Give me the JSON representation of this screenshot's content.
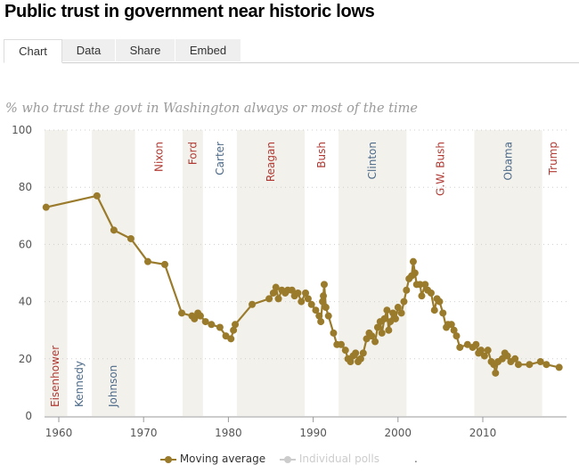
{
  "title": "Public trust in government near historic lows",
  "tabs": [
    {
      "label": "Chart",
      "active": true
    },
    {
      "label": "Data",
      "active": false
    },
    {
      "label": "Share",
      "active": false
    },
    {
      "label": "Embed",
      "active": false
    }
  ],
  "colors": {
    "line": "#9a7b2c",
    "band": "#f3f1ec",
    "republican": "#b03a33",
    "democrat": "#4d6a89",
    "inactive_legend": "#cccccc",
    "grid": "#cfcfcf",
    "axis": "#999999"
  },
  "chart_data": {
    "type": "line",
    "title": "Public trust in government near historic lows",
    "subtitle": "% who trust the govt in Washington always or most of the time",
    "xlabel": "",
    "ylabel": "",
    "xlim": [
      1958.3,
      2020
    ],
    "ylim": [
      0,
      100
    ],
    "x_ticks": [
      1960,
      1970,
      1980,
      1990,
      2000,
      2010
    ],
    "y_ticks": [
      0,
      20,
      40,
      60,
      80,
      100
    ],
    "grid": true,
    "legend_position": "bottom",
    "legend": [
      {
        "label": "Moving average",
        "active": true
      },
      {
        "label": "Individual polls",
        "active": false
      },
      {
        "label": ".",
        "active": false
      }
    ],
    "presidents": [
      {
        "name": "Eisenhower",
        "start": 1953,
        "end": 1961,
        "party": "R",
        "shaded": true
      },
      {
        "name": "Kennedy",
        "start": 1961,
        "end": 1963.9,
        "party": "D",
        "shaded": false
      },
      {
        "name": "Johnson",
        "start": 1963.9,
        "end": 1969,
        "party": "D",
        "shaded": true
      },
      {
        "name": "Nixon",
        "start": 1969,
        "end": 1974.6,
        "party": "R",
        "shaded": false
      },
      {
        "name": "Ford",
        "start": 1974.6,
        "end": 1977,
        "party": "R",
        "shaded": true
      },
      {
        "name": "Carter",
        "start": 1977,
        "end": 1981,
        "party": "D",
        "shaded": false
      },
      {
        "name": "Reagan",
        "start": 1981,
        "end": 1989,
        "party": "R",
        "shaded": true
      },
      {
        "name": "Bush",
        "start": 1989,
        "end": 1993,
        "party": "R",
        "shaded": false
      },
      {
        "name": "Clinton",
        "start": 1993,
        "end": 2001,
        "party": "D",
        "shaded": true
      },
      {
        "name": "G.W. Bush",
        "start": 2001,
        "end": 2009,
        "party": "R",
        "shaded": false
      },
      {
        "name": "Obama",
        "start": 2009,
        "end": 2017,
        "party": "D",
        "shaded": true
      },
      {
        "name": "Trump",
        "start": 2017,
        "end": 2020,
        "party": "R",
        "shaded": false
      }
    ],
    "series": [
      {
        "name": "Moving average",
        "points": [
          [
            1958.5,
            73
          ],
          [
            1964.5,
            77
          ],
          [
            1966.5,
            65
          ],
          [
            1968.5,
            62
          ],
          [
            1970.5,
            54
          ],
          [
            1972.5,
            53
          ],
          [
            1974.5,
            36
          ],
          [
            1975.7,
            35
          ],
          [
            1976.0,
            34
          ],
          [
            1976.4,
            36
          ],
          [
            1976.7,
            35
          ],
          [
            1977.3,
            33
          ],
          [
            1978.0,
            32
          ],
          [
            1979.0,
            31
          ],
          [
            1979.7,
            28
          ],
          [
            1980.3,
            27
          ],
          [
            1980.6,
            30
          ],
          [
            1980.8,
            32
          ],
          [
            1982.8,
            39
          ],
          [
            1984.8,
            41
          ],
          [
            1985.3,
            43
          ],
          [
            1985.6,
            45
          ],
          [
            1985.9,
            41
          ],
          [
            1986.3,
            44
          ],
          [
            1986.7,
            43
          ],
          [
            1987.0,
            44
          ],
          [
            1987.5,
            44
          ],
          [
            1987.8,
            42
          ],
          [
            1988.2,
            43
          ],
          [
            1988.6,
            40
          ],
          [
            1989.1,
            43
          ],
          [
            1989.4,
            41
          ],
          [
            1989.8,
            39
          ],
          [
            1990.3,
            37
          ],
          [
            1990.7,
            35
          ],
          [
            1990.9,
            33
          ],
          [
            1991.1,
            40
          ],
          [
            1991.2,
            42
          ],
          [
            1991.3,
            46
          ],
          [
            1991.5,
            38
          ],
          [
            1991.8,
            35
          ],
          [
            1992.4,
            29
          ],
          [
            1992.8,
            25
          ],
          [
            1993.3,
            25
          ],
          [
            1993.8,
            23
          ],
          [
            1994.1,
            20
          ],
          [
            1994.4,
            19
          ],
          [
            1994.7,
            21
          ],
          [
            1995.0,
            22
          ],
          [
            1995.3,
            19
          ],
          [
            1995.6,
            20
          ],
          [
            1995.9,
            22
          ],
          [
            1996.3,
            27
          ],
          [
            1996.6,
            29
          ],
          [
            1996.9,
            28
          ],
          [
            1997.3,
            26
          ],
          [
            1997.6,
            31
          ],
          [
            1997.9,
            33
          ],
          [
            1998.1,
            29
          ],
          [
            1998.4,
            34
          ],
          [
            1998.7,
            37
          ],
          [
            1998.9,
            30
          ],
          [
            1999.1,
            33
          ],
          [
            1999.4,
            36
          ],
          [
            1999.7,
            34
          ],
          [
            2000.0,
            38
          ],
          [
            2000.4,
            36
          ],
          [
            2000.7,
            40
          ],
          [
            2001.0,
            44
          ],
          [
            2001.3,
            48
          ],
          [
            2001.6,
            49
          ],
          [
            2001.8,
            54
          ],
          [
            2002.0,
            50
          ],
          [
            2002.2,
            46
          ],
          [
            2002.6,
            46
          ],
          [
            2002.8,
            42
          ],
          [
            2003.2,
            46
          ],
          [
            2003.5,
            44
          ],
          [
            2003.9,
            43
          ],
          [
            2004.3,
            37
          ],
          [
            2004.6,
            41
          ],
          [
            2004.9,
            40
          ],
          [
            2005.3,
            36
          ],
          [
            2005.7,
            31
          ],
          [
            2005.9,
            32
          ],
          [
            2006.3,
            32
          ],
          [
            2006.6,
            30
          ],
          [
            2006.9,
            28
          ],
          [
            2007.3,
            24
          ],
          [
            2008.2,
            25
          ],
          [
            2008.8,
            24
          ],
          [
            2009.2,
            25
          ],
          [
            2009.5,
            22
          ],
          [
            2009.8,
            23
          ],
          [
            2010.2,
            21
          ],
          [
            2010.6,
            23
          ],
          [
            2011.0,
            19
          ],
          [
            2011.3,
            18
          ],
          [
            2011.5,
            15
          ],
          [
            2011.8,
            19
          ],
          [
            2012.3,
            20
          ],
          [
            2012.6,
            22
          ],
          [
            2012.9,
            21
          ],
          [
            2013.3,
            19
          ],
          [
            2013.8,
            20
          ],
          [
            2014.2,
            18
          ],
          [
            2015.5,
            18
          ],
          [
            2016.8,
            19
          ],
          [
            2017.5,
            18
          ],
          [
            2019.0,
            17
          ]
        ]
      }
    ]
  }
}
